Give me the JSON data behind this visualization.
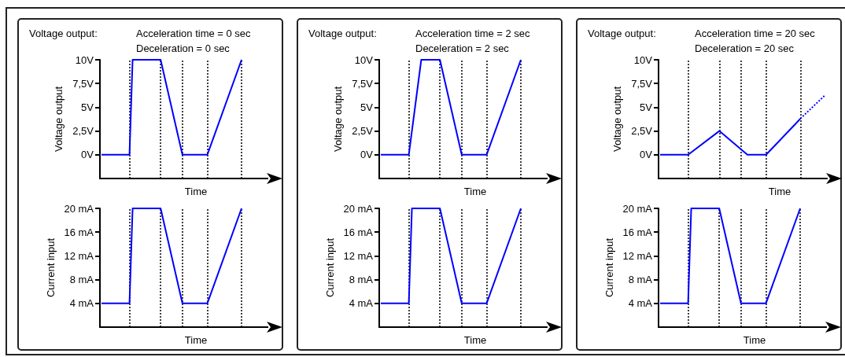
{
  "chart_data": [
    {
      "type": "line",
      "title": "Voltage output:",
      "annotations": [
        "Acceleration time = 0 sec",
        "Deceleration = 0 sec"
      ],
      "ylabel": "Voltage output",
      "xlabel": "Time",
      "marker": "none",
      "tick_labels": "y",
      "grid": "x",
      "categories": [
        null,
        null,
        null,
        null,
        null,
        null,
        null,
        null,
        null,
        null,
        null,
        null,
        null,
        null,
        null,
        null,
        null,
        null,
        null,
        null,
        null,
        null,
        null,
        null,
        null,
        null,
        null,
        null,
        null,
        null,
        null,
        null,
        null,
        null,
        null,
        null,
        null,
        null,
        null,
        null,
        null,
        null,
        null,
        null,
        null,
        null
      ],
      "ylim": [
        -2.5,
        10
      ],
      "yticks": [
        {
          "value": 0,
          "label": "0V"
        },
        {
          "value": 2.5,
          "label": "2,5V"
        },
        {
          "value": 5,
          "label": "5V"
        },
        {
          "value": 7.5,
          "label": "7,5V"
        },
        {
          "value": 10,
          "label": "10V"
        }
      ],
      "series": [
        {
          "color": "#0000ff",
          "values": [
            0,
            null,
            null,
            null,
            null,
            null,
            null,
            null,
            null,
            0,
            10,
            null,
            null,
            null,
            null,
            null,
            null,
            null,
            null,
            10,
            null,
            null,
            null,
            null,
            null,
            null,
            0,
            null,
            null,
            null,
            null,
            null,
            null,
            null,
            0,
            null,
            null,
            null,
            null,
            null,
            null,
            null,
            null,
            null,
            null,
            10
          ]
        }
      ]
    },
    {
      "type": "line",
      "ylabel": "Current input",
      "xlabel": "Time",
      "marker": "none",
      "tick_labels": "y",
      "grid": "x",
      "categories": [
        null,
        null,
        null,
        null,
        null,
        null,
        null,
        null,
        null,
        null,
        null,
        null,
        null,
        null,
        null,
        null,
        null,
        null,
        null,
        null,
        null,
        null,
        null,
        null,
        null,
        null,
        null,
        null,
        null,
        null,
        null,
        null,
        null,
        null,
        null,
        null,
        null,
        null,
        null,
        null,
        null,
        null,
        null,
        null,
        null,
        null
      ],
      "ylim": [
        0,
        20
      ],
      "yticks": [
        {
          "value": 4,
          "label": "4 mA"
        },
        {
          "value": 8,
          "label": "8 mA"
        },
        {
          "value": 12,
          "label": "12 mA"
        },
        {
          "value": 16,
          "label": "16 mA"
        },
        {
          "value": 20,
          "label": "20 mA"
        }
      ],
      "series": [
        {
          "color": "#0000ff",
          "values": [
            4,
            null,
            null,
            null,
            null,
            null,
            null,
            null,
            null,
            4,
            20,
            null,
            null,
            null,
            null,
            null,
            null,
            null,
            null,
            20,
            null,
            null,
            null,
            null,
            null,
            null,
            4,
            null,
            null,
            null,
            null,
            null,
            null,
            null,
            4,
            null,
            null,
            null,
            null,
            null,
            null,
            null,
            null,
            null,
            null,
            20
          ]
        }
      ]
    },
    {
      "type": "line",
      "title": "Voltage output:",
      "annotations": [
        "Acceleration time = 2 sec",
        "Deceleration = 2 sec"
      ],
      "ylabel": "Voltage output",
      "xlabel": "Time",
      "marker": "none",
      "tick_labels": "y",
      "grid": "x",
      "categories": [
        null,
        null,
        null,
        null,
        null,
        null,
        null,
        null,
        null,
        null,
        null,
        null,
        null,
        null,
        null,
        null,
        null,
        null,
        null,
        null,
        null,
        null,
        null,
        null,
        null,
        null,
        null,
        null,
        null,
        null,
        null,
        null,
        null,
        null,
        null,
        null,
        null,
        null,
        null,
        null,
        null,
        null,
        null,
        null,
        null,
        null
      ],
      "ylim": [
        -2.5,
        10
      ],
      "yticks": [
        {
          "value": 0,
          "label": "0V"
        },
        {
          "value": 2.5,
          "label": "2,5V"
        },
        {
          "value": 5,
          "label": "5V"
        },
        {
          "value": 7.5,
          "label": "7,5V"
        },
        {
          "value": 10,
          "label": "10V"
        }
      ],
      "series": [
        {
          "color": "#0000ff",
          "values": [
            0,
            null,
            null,
            null,
            null,
            null,
            null,
            null,
            null,
            0,
            null,
            null,
            null,
            10,
            null,
            null,
            null,
            null,
            null,
            10,
            null,
            null,
            null,
            null,
            null,
            null,
            0,
            null,
            null,
            null,
            null,
            null,
            null,
            null,
            0,
            null,
            null,
            null,
            null,
            null,
            null,
            null,
            null,
            null,
            null,
            10
          ]
        }
      ]
    },
    {
      "type": "line",
      "ylabel": "Current input",
      "xlabel": "Time",
      "marker": "none",
      "tick_labels": "y",
      "grid": "x",
      "categories": [
        null,
        null,
        null,
        null,
        null,
        null,
        null,
        null,
        null,
        null,
        null,
        null,
        null,
        null,
        null,
        null,
        null,
        null,
        null,
        null,
        null,
        null,
        null,
        null,
        null,
        null,
        null,
        null,
        null,
        null,
        null,
        null,
        null,
        null,
        null,
        null,
        null,
        null,
        null,
        null,
        null,
        null,
        null,
        null,
        null,
        null
      ],
      "ylim": [
        0,
        20
      ],
      "yticks": [
        {
          "value": 4,
          "label": "4 mA"
        },
        {
          "value": 8,
          "label": "8 mA"
        },
        {
          "value": 12,
          "label": "12 mA"
        },
        {
          "value": 16,
          "label": "16 mA"
        },
        {
          "value": 20,
          "label": "20 mA"
        }
      ],
      "series": [
        {
          "color": "#0000ff",
          "values": [
            4,
            null,
            null,
            null,
            null,
            null,
            null,
            null,
            null,
            4,
            20,
            null,
            null,
            null,
            null,
            null,
            null,
            null,
            null,
            20,
            null,
            null,
            null,
            null,
            null,
            null,
            4,
            null,
            null,
            null,
            null,
            null,
            null,
            null,
            4,
            null,
            null,
            null,
            null,
            null,
            null,
            null,
            null,
            null,
            null,
            20
          ]
        }
      ]
    },
    {
      "type": "line",
      "title": "Voltage output:",
      "annotations": [
        "Acceleration time = 20 sec",
        "Deceleration = 20 sec"
      ],
      "ylabel": "Voltage output",
      "xlabel": "Time",
      "marker": "none",
      "tick_labels": "y",
      "grid": "x",
      "categories": [
        null,
        null,
        null,
        null,
        null,
        null,
        null,
        null,
        null,
        null,
        null,
        null,
        null,
        null,
        null,
        null,
        null,
        null,
        null,
        null,
        null,
        null,
        null,
        null,
        null,
        null,
        null,
        null,
        null,
        null,
        null,
        null,
        null,
        null,
        null,
        null,
        null,
        null,
        null,
        null,
        null,
        null,
        null,
        null,
        null,
        null,
        null,
        null,
        null,
        null,
        null,
        null,
        null,
        null
      ],
      "ylim": [
        -2.5,
        10
      ],
      "yticks": [
        {
          "value": 0,
          "label": "0V"
        },
        {
          "value": 2.5,
          "label": "2,5V"
        },
        {
          "value": 5,
          "label": "5V"
        },
        {
          "value": 7.5,
          "label": "7,5V"
        },
        {
          "value": 10,
          "label": "10V"
        }
      ],
      "series": [
        {
          "color": "#0000ff",
          "values": [
            0,
            null,
            null,
            null,
            null,
            null,
            null,
            null,
            null,
            0,
            null,
            null,
            null,
            null,
            null,
            null,
            null,
            null,
            null,
            2.5,
            null,
            null,
            null,
            null,
            null,
            null,
            null,
            null,
            0,
            null,
            null,
            null,
            null,
            null,
            0,
            null,
            null,
            null,
            null,
            null,
            null,
            null,
            null,
            null,
            null,
            3.8,
            null,
            null,
            null,
            null,
            null,
            null,
            null,
            null
          ]
        },
        {
          "color": "#0000ff",
          "line_style": "dotted",
          "values": [
            null,
            null,
            null,
            null,
            null,
            null,
            null,
            null,
            null,
            null,
            null,
            null,
            null,
            null,
            null,
            null,
            null,
            null,
            null,
            null,
            null,
            null,
            null,
            null,
            null,
            null,
            null,
            null,
            null,
            null,
            null,
            null,
            null,
            null,
            null,
            null,
            null,
            null,
            null,
            null,
            null,
            null,
            null,
            null,
            null,
            3.8,
            null,
            null,
            null,
            null,
            null,
            null,
            null,
            6.3
          ]
        }
      ]
    },
    {
      "type": "line",
      "ylabel": "Current input",
      "xlabel": "Time",
      "marker": "none",
      "tick_labels": "y",
      "grid": "x",
      "categories": [
        null,
        null,
        null,
        null,
        null,
        null,
        null,
        null,
        null,
        null,
        null,
        null,
        null,
        null,
        null,
        null,
        null,
        null,
        null,
        null,
        null,
        null,
        null,
        null,
        null,
        null,
        null,
        null,
        null,
        null,
        null,
        null,
        null,
        null,
        null,
        null,
        null,
        null,
        null,
        null,
        null,
        null,
        null,
        null,
        null,
        null
      ],
      "ylim": [
        0,
        20
      ],
      "yticks": [
        {
          "value": 4,
          "label": "4 mA"
        },
        {
          "value": 8,
          "label": "8 mA"
        },
        {
          "value": 12,
          "label": "12 mA"
        },
        {
          "value": 16,
          "label": "16 mA"
        },
        {
          "value": 20,
          "label": "20 mA"
        }
      ],
      "series": [
        {
          "color": "#0000ff",
          "values": [
            4,
            null,
            null,
            null,
            null,
            null,
            null,
            null,
            null,
            4,
            20,
            null,
            null,
            null,
            null,
            null,
            null,
            null,
            null,
            20,
            null,
            null,
            null,
            null,
            null,
            null,
            4,
            null,
            null,
            null,
            null,
            null,
            null,
            null,
            4,
            null,
            null,
            null,
            null,
            null,
            null,
            null,
            null,
            null,
            null,
            20
          ]
        }
      ]
    }
  ]
}
